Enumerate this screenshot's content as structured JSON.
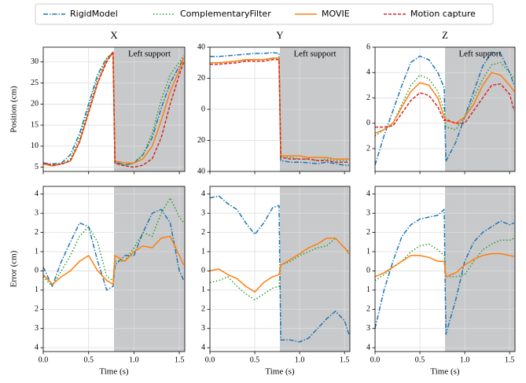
{
  "chart_data": [
    {
      "type": "line",
      "title": "X",
      "ylabel": "Position (cm)",
      "xticklabels": false,
      "x": [
        0,
        0.1,
        0.2,
        0.3,
        0.4,
        0.5,
        0.6,
        0.7,
        0.77,
        0.79,
        0.9,
        1.0,
        1.1,
        1.2,
        1.3,
        1.4,
        1.5,
        1.55
      ],
      "xlim": [
        0,
        1.56
      ],
      "xticks": [
        {
          "value": 0,
          "label": "0.0"
        },
        {
          "value": 0.5,
          "label": "0.5"
        },
        {
          "value": 1,
          "label": "1.0"
        },
        {
          "value": 1.5,
          "label": "1.5"
        }
      ],
      "ylim": [
        4,
        33.5
      ],
      "yticks": [
        5,
        10,
        15,
        20,
        25,
        30
      ],
      "grid": true,
      "shaded_region": {
        "x": [
          0.78,
          1.56
        ],
        "label": "Left support"
      },
      "series": [
        {
          "name": "RigidModel",
          "color": "#1f77b4",
          "dash": "dashdot",
          "values": [
            6,
            5.8,
            6,
            8,
            13,
            20,
            27,
            31,
            32,
            6.3,
            5.5,
            6,
            8,
            12,
            19,
            25,
            29,
            31
          ]
        },
        {
          "name": "ComplementaryFilter",
          "color": "#2ca02c",
          "dash": "dotted",
          "values": [
            5.8,
            5.3,
            5.8,
            7,
            12,
            19,
            26,
            31,
            32,
            6,
            5.5,
            6,
            8,
            13,
            21,
            27,
            30,
            31.5
          ]
        },
        {
          "name": "MOVIE",
          "color": "#ff7f0e",
          "dash": "solid",
          "values": [
            5.8,
            5.3,
            5.8,
            6.5,
            11,
            18,
            25,
            30.5,
            32,
            6.5,
            6,
            6,
            7,
            10,
            16,
            23,
            28,
            31
          ]
        },
        {
          "name": "Motion capture",
          "color": "#d62728",
          "dash": "dashed",
          "values": [
            6,
            5.5,
            5.7,
            6.5,
            11,
            18,
            25,
            30,
            32.5,
            6,
            5.3,
            5,
            5.5,
            7,
            12,
            20,
            27,
            30
          ]
        }
      ]
    },
    {
      "type": "line",
      "title": "Y",
      "xticklabels": false,
      "x": [
        0,
        0.1,
        0.2,
        0.3,
        0.4,
        0.5,
        0.6,
        0.7,
        0.77,
        0.79,
        0.9,
        1.0,
        1.1,
        1.2,
        1.3,
        1.4,
        1.5,
        1.55
      ],
      "xlim": [
        0,
        1.56
      ],
      "xticks": [
        {
          "value": 0,
          "label": "0.0"
        },
        {
          "value": 0.5,
          "label": "0.5"
        },
        {
          "value": 1,
          "label": "1.0"
        },
        {
          "value": 1.5,
          "label": "1.5"
        }
      ],
      "ylim": [
        -40,
        40
      ],
      "yticks": [
        {
          "value": -40,
          "label": "40"
        },
        {
          "value": -20,
          "label": "20"
        },
        0,
        20,
        40
      ],
      "grid": true,
      "shaded_region": {
        "x": [
          0.78,
          1.56
        ],
        "label": "Left support"
      },
      "series": [
        {
          "name": "RigidModel",
          "color": "#1f77b4",
          "dash": "dashdot",
          "values": [
            34,
            34,
            34.5,
            35,
            35.5,
            36,
            36,
            36.5,
            36,
            -33,
            -34,
            -34,
            -34.5,
            -35,
            -34,
            -35,
            -36,
            -36
          ]
        },
        {
          "name": "ComplementaryFilter",
          "color": "#2ca02c",
          "dash": "dotted",
          "values": [
            30,
            30,
            30.5,
            31,
            31.5,
            32,
            32,
            32.5,
            32,
            -31,
            -31,
            -32,
            -32,
            -33,
            -32,
            -33,
            -33,
            -33
          ]
        },
        {
          "name": "MOVIE",
          "color": "#ff7f0e",
          "dash": "solid",
          "values": [
            30,
            30,
            30.5,
            31,
            32,
            32,
            32,
            33,
            33,
            -30,
            -30,
            -30,
            -31,
            -31,
            -31,
            -32,
            -32,
            -32
          ]
        },
        {
          "name": "Motion capture",
          "color": "#d62728",
          "dash": "dashed",
          "values": [
            29,
            29,
            29.5,
            30,
            31,
            31,
            31,
            32,
            32,
            -31,
            -32,
            -32,
            -32,
            -33,
            -33,
            -34,
            -34,
            -34
          ]
        }
      ]
    },
    {
      "type": "line",
      "title": "Z",
      "xticklabels": false,
      "x": [
        0,
        0.1,
        0.2,
        0.3,
        0.4,
        0.5,
        0.6,
        0.7,
        0.77,
        0.79,
        0.9,
        1.0,
        1.1,
        1.2,
        1.3,
        1.4,
        1.5,
        1.55
      ],
      "xlim": [
        0,
        1.56
      ],
      "xticks": [
        {
          "value": 0,
          "label": "0.0"
        },
        {
          "value": 0.5,
          "label": "0.5"
        },
        {
          "value": 1,
          "label": "1.0"
        },
        {
          "value": 1.5,
          "label": "1.5"
        }
      ],
      "ylim": [
        -3.8,
        6
      ],
      "yticks": [
        {
          "value": -2,
          "label": "2"
        },
        0,
        2,
        4,
        6
      ],
      "grid": true,
      "shaded_region": {
        "x": [
          0.78,
          1.56
        ],
        "label": "Left support"
      },
      "series": [
        {
          "name": "RigidModel",
          "color": "#1f77b4",
          "dash": "dashdot",
          "values": [
            -3.3,
            -1,
            1,
            3,
            4.8,
            5.3,
            5,
            4,
            2.8,
            -3,
            -1.5,
            0.5,
            2.5,
            4.5,
            5.6,
            5.5,
            4,
            3
          ]
        },
        {
          "name": "ComplementaryFilter",
          "color": "#2ca02c",
          "dash": "dotted",
          "values": [
            -1,
            -0.5,
            0,
            1.5,
            3,
            3.8,
            3.5,
            2.5,
            1,
            -0.3,
            -0.5,
            0.5,
            2,
            3.5,
            4.6,
            4.8,
            4,
            3.5
          ]
        },
        {
          "name": "MOVIE",
          "color": "#ff7f0e",
          "dash": "solid",
          "values": [
            -0.8,
            -0.5,
            0,
            1.3,
            2.5,
            3.2,
            3,
            2,
            0.5,
            0.2,
            0,
            0.5,
            1.5,
            3,
            4,
            3.8,
            3,
            2.5
          ]
        },
        {
          "name": "Motion capture",
          "color": "#d62728",
          "dash": "dashed",
          "values": [
            -0.3,
            -0.3,
            -0.2,
            0.8,
            1.8,
            2.4,
            2.2,
            1.3,
            0.2,
            0.3,
            0,
            0,
            1,
            2,
            3,
            3.1,
            2.3,
            1
          ]
        }
      ]
    },
    {
      "type": "line",
      "ylabel": "Error (cm)",
      "xlabel": "Time (s)",
      "xticklabels": true,
      "x": [
        0,
        0.1,
        0.2,
        0.3,
        0.4,
        0.5,
        0.6,
        0.7,
        0.77,
        0.79,
        0.9,
        1.0,
        1.1,
        1.2,
        1.3,
        1.4,
        1.5,
        1.55
      ],
      "xlim": [
        0,
        1.56
      ],
      "xticks": [
        {
          "value": 0,
          "label": "0.0"
        },
        {
          "value": 0.5,
          "label": "0.5"
        },
        {
          "value": 1,
          "label": "1.0"
        },
        {
          "value": 1.5,
          "label": "1.5"
        }
      ],
      "ylim": [
        -4.2,
        4.4
      ],
      "yticks": [
        {
          "value": -4,
          "label": "4"
        },
        {
          "value": -3,
          "label": "3"
        },
        {
          "value": -2,
          "label": "2"
        },
        {
          "value": -1,
          "label": "1"
        },
        0,
        1,
        2,
        3,
        4
      ],
      "grid": true,
      "shaded_region": {
        "x": [
          0.78,
          1.56
        ]
      },
      "series": [
        {
          "name": "RigidModel",
          "color": "#1f77b4",
          "dash": "dashdot",
          "values": [
            0.2,
            -0.8,
            0.5,
            1.5,
            2.5,
            2.3,
            0.5,
            -1,
            -0.8,
            0.3,
            0.8,
            0.8,
            2,
            3,
            3.2,
            2.5,
            0,
            -0.5
          ]
        },
        {
          "name": "ComplementaryFilter",
          "color": "#2ca02c",
          "dash": "dotted",
          "values": [
            -0.3,
            -0.8,
            0,
            0.8,
            1.8,
            2.3,
            1.5,
            -0.3,
            -0.5,
            0.5,
            0.5,
            1.2,
            2,
            1.8,
            3,
            3.8,
            2.8,
            2.5
          ]
        },
        {
          "name": "MOVIE",
          "color": "#ff7f0e",
          "dash": "solid",
          "values": [
            -0.2,
            -0.7,
            -0.3,
            0,
            0.5,
            0.8,
            0,
            -0.5,
            -0.7,
            0.8,
            0.5,
            1,
            1.3,
            1.2,
            1.7,
            1.8,
            0.8,
            0.3
          ]
        }
      ]
    },
    {
      "type": "line",
      "xlabel": "Time (s)",
      "xticklabels": true,
      "x": [
        0,
        0.1,
        0.2,
        0.3,
        0.4,
        0.5,
        0.6,
        0.7,
        0.77,
        0.79,
        0.9,
        1.0,
        1.1,
        1.2,
        1.3,
        1.4,
        1.5,
        1.55
      ],
      "xlim": [
        0,
        1.56
      ],
      "xticks": [
        {
          "value": 0,
          "label": "0.0"
        },
        {
          "value": 0.5,
          "label": "0.5"
        },
        {
          "value": 1,
          "label": "1.0"
        },
        {
          "value": 1.5,
          "label": "1.5"
        }
      ],
      "ylim": [
        -4.2,
        4.4
      ],
      "yticks": [
        {
          "value": -4,
          "label": "4"
        },
        {
          "value": -3,
          "label": "3"
        },
        {
          "value": -2,
          "label": "2"
        },
        {
          "value": -1,
          "label": "1"
        },
        0,
        1,
        2,
        3,
        4
      ],
      "grid": true,
      "shaded_region": {
        "x": [
          0.78,
          1.56
        ]
      },
      "series": [
        {
          "name": "RigidModel",
          "color": "#1f77b4",
          "dash": "dashdot",
          "values": [
            3.8,
            3.9,
            3.5,
            3.2,
            2.5,
            1.9,
            2.5,
            3.3,
            3.4,
            -3.6,
            -3.6,
            -3.7,
            -3.5,
            -3,
            -2.5,
            -2.1,
            -2.6,
            -3.3
          ]
        },
        {
          "name": "ComplementaryFilter",
          "color": "#2ca02c",
          "dash": "dotted",
          "values": [
            -0.6,
            -0.5,
            -0.3,
            -0.8,
            -1.2,
            -1.5,
            -1.2,
            -0.9,
            -0.8,
            0.3,
            0.5,
            0.8,
            1,
            1.2,
            1.3,
            1.7,
            1.2,
            1
          ]
        },
        {
          "name": "MOVIE",
          "color": "#ff7f0e",
          "dash": "solid",
          "values": [
            0,
            0.1,
            -0.2,
            -0.4,
            -0.8,
            -1.1,
            -0.6,
            -0.3,
            -0.2,
            0.3,
            0.6,
            0.9,
            1.2,
            1.4,
            1.7,
            1.7,
            1.2,
            0.9
          ]
        }
      ]
    },
    {
      "type": "line",
      "xlabel": "Time (s)",
      "xticklabels": true,
      "x": [
        0,
        0.1,
        0.2,
        0.3,
        0.4,
        0.5,
        0.6,
        0.7,
        0.77,
        0.79,
        0.9,
        1.0,
        1.1,
        1.2,
        1.3,
        1.4,
        1.5,
        1.55
      ],
      "xlim": [
        0,
        1.56
      ],
      "xticks": [
        {
          "value": 0,
          "label": "0.0"
        },
        {
          "value": 0.5,
          "label": "0.5"
        },
        {
          "value": 1,
          "label": "1.0"
        },
        {
          "value": 1.5,
          "label": "1.5"
        }
      ],
      "ylim": [
        -4.2,
        4.4
      ],
      "yticks": [
        {
          "value": -4,
          "label": "4"
        },
        {
          "value": -3,
          "label": "3"
        },
        {
          "value": -2,
          "label": "2"
        },
        {
          "value": -1,
          "label": "1"
        },
        0,
        1,
        2,
        3,
        4
      ],
      "grid": true,
      "shaded_region": {
        "x": [
          0.78,
          1.56
        ]
      },
      "series": [
        {
          "name": "RigidModel",
          "color": "#1f77b4",
          "dash": "dashdot",
          "values": [
            -3,
            -1,
            0.5,
            1.8,
            2.4,
            2.7,
            2.8,
            2.9,
            3.2,
            -3.3,
            -1.5,
            0.5,
            1.5,
            2,
            2.3,
            2.6,
            2.4,
            2.5
          ]
        },
        {
          "name": "ComplementaryFilter",
          "color": "#2ca02c",
          "dash": "dotted",
          "values": [
            -0.5,
            -0.2,
            0.2,
            0.5,
            1,
            1.3,
            1.4,
            1.1,
            0.8,
            -0.3,
            -0.3,
            -0.2,
            0.5,
            1.1,
            1.4,
            1.6,
            1.6,
            1.7
          ]
        },
        {
          "name": "MOVIE",
          "color": "#ff7f0e",
          "dash": "solid",
          "values": [
            -0.3,
            -0.1,
            0.2,
            0.5,
            0.8,
            0.8,
            0.7,
            0.5,
            0.5,
            -0.3,
            -0.1,
            0.3,
            0.6,
            0.8,
            0.9,
            0.9,
            0.8,
            0.75
          ]
        }
      ]
    }
  ]
}
